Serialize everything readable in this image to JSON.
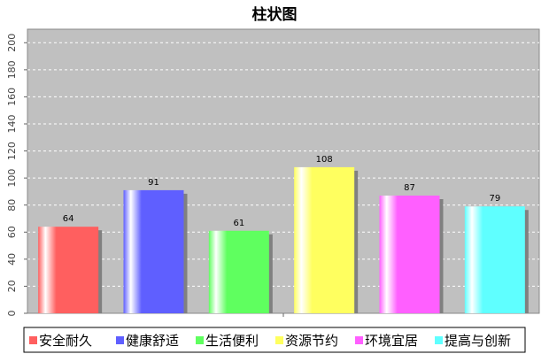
{
  "chart_data": {
    "type": "bar",
    "title": "柱状图",
    "xlabel": "",
    "ylabel": "",
    "categories": [
      "安全耐久",
      "健康舒适",
      "生活便利",
      "资源节约",
      "环境宜居",
      "提高与创新"
    ],
    "values": [
      64,
      91,
      61,
      108,
      87,
      79
    ],
    "colors": [
      "#ff5f5f",
      "#5f5fff",
      "#5fff5f",
      "#ffff5f",
      "#ff5fff",
      "#5fffff"
    ],
    "ylim": [
      0,
      210
    ],
    "yticks": [
      0,
      20,
      40,
      60,
      80,
      100,
      120,
      140,
      160,
      180,
      200
    ],
    "grid": true,
    "legend_position": "bottom",
    "plot_background": "#c0c0c0"
  }
}
